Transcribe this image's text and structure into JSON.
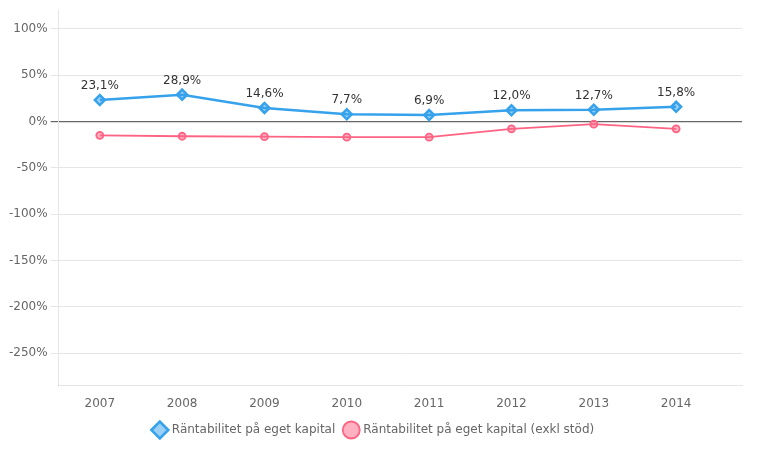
{
  "chart_data": {
    "type": "line",
    "x": [
      2007,
      2008,
      2009,
      2010,
      2011,
      2012,
      2013,
      2014
    ],
    "series": [
      {
        "name": "Räntabilitet på eget kapital",
        "marker": "diamond",
        "values": [
          23.1,
          28.9,
          14.6,
          7.7,
          6.9,
          12.0,
          12.7,
          15.8
        ],
        "data_labels": true,
        "value_labels": [
          "23,1%",
          "28,9%",
          "14,6%",
          "7,7%",
          "6,9%",
          "12,0%",
          "12,7%",
          "15,8%"
        ]
      },
      {
        "name": "Räntabilitet på eget kapital (exkl stöd)",
        "marker": "circle",
        "values": [
          -15.0,
          -16.0,
          -16.5,
          -17.0,
          -17.0,
          -8.0,
          -3.0,
          -8.0
        ]
      }
    ],
    "xlim": [
      2006.5,
      2014.8
    ],
    "xticks": [
      2007,
      2008,
      2009,
      2010,
      2011,
      2012,
      2013,
      2014
    ],
    "ylim": [
      -285,
      120
    ],
    "yticks": [
      {
        "value": 100,
        "label": "100%"
      },
      {
        "value": 50,
        "label": "50%"
      },
      {
        "value": 0,
        "label": "0%"
      },
      {
        "value": -50,
        "label": "-50%"
      },
      {
        "value": -100,
        "label": "-100%"
      },
      {
        "value": -150,
        "label": "-150%"
      },
      {
        "value": -200,
        "label": "-200%"
      },
      {
        "value": -250,
        "label": "-250%"
      }
    ],
    "grid": "y",
    "legend": "bottom"
  }
}
